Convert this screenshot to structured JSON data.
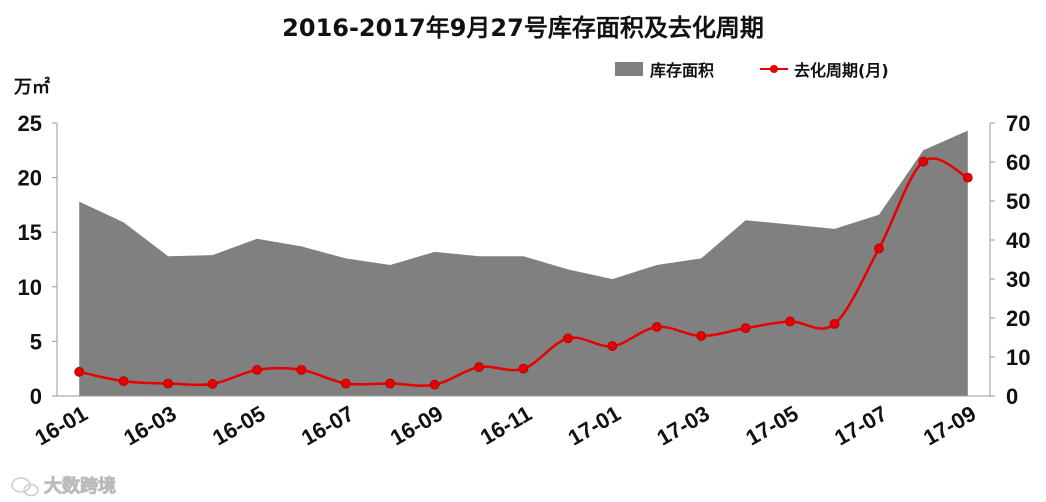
{
  "chart_data": {
    "type": "area",
    "title": "2016-2017年9月27号库存面积及去化周期",
    "y_unit_label": "万㎡",
    "x": [
      "16-01",
      "16-02",
      "16-03",
      "16-04",
      "16-05",
      "16-06",
      "16-07",
      "16-08",
      "16-09",
      "16-10",
      "16-11",
      "16-12",
      "17-01",
      "17-02",
      "17-03",
      "17-04",
      "17-05",
      "17-06",
      "17-07",
      "17-08",
      "17-09"
    ],
    "x_tick_labels": [
      "16-01",
      "16-03",
      "16-05",
      "16-07",
      "16-09",
      "16-11",
      "17-01",
      "17-03",
      "17-05",
      "17-07",
      "17-09"
    ],
    "series": [
      {
        "name": "库存面积",
        "type": "area",
        "axis": "left",
        "color": "#808080",
        "values": [
          17.8,
          15.9,
          12.8,
          12.9,
          14.4,
          13.7,
          12.6,
          12.0,
          13.2,
          12.8,
          12.8,
          11.6,
          10.7,
          12.0,
          12.6,
          16.1,
          15.7,
          15.3,
          16.6,
          22.5,
          24.3
        ]
      },
      {
        "name": "去化周期(月)",
        "type": "line",
        "axis": "right",
        "color": "#e60000",
        "values": [
          6.2,
          3.8,
          3.2,
          3.1,
          6.7,
          6.7,
          3.2,
          3.2,
          2.9,
          7.4,
          7.0,
          14.8,
          12.8,
          17.7,
          15.4,
          17.4,
          19.1,
          18.5,
          37.8,
          60.1,
          56.0
        ]
      }
    ],
    "y_left": {
      "min": 0,
      "max": 25,
      "ticks": [
        0,
        5,
        10,
        15,
        20,
        25
      ]
    },
    "y_right": {
      "min": 0,
      "max": 70,
      "ticks": [
        0,
        10,
        20,
        30,
        40,
        50,
        60,
        70
      ]
    },
    "legend_position": "top-right",
    "grid": false
  },
  "watermark": "大数跨境",
  "watermark_icon": "wechat-icon"
}
